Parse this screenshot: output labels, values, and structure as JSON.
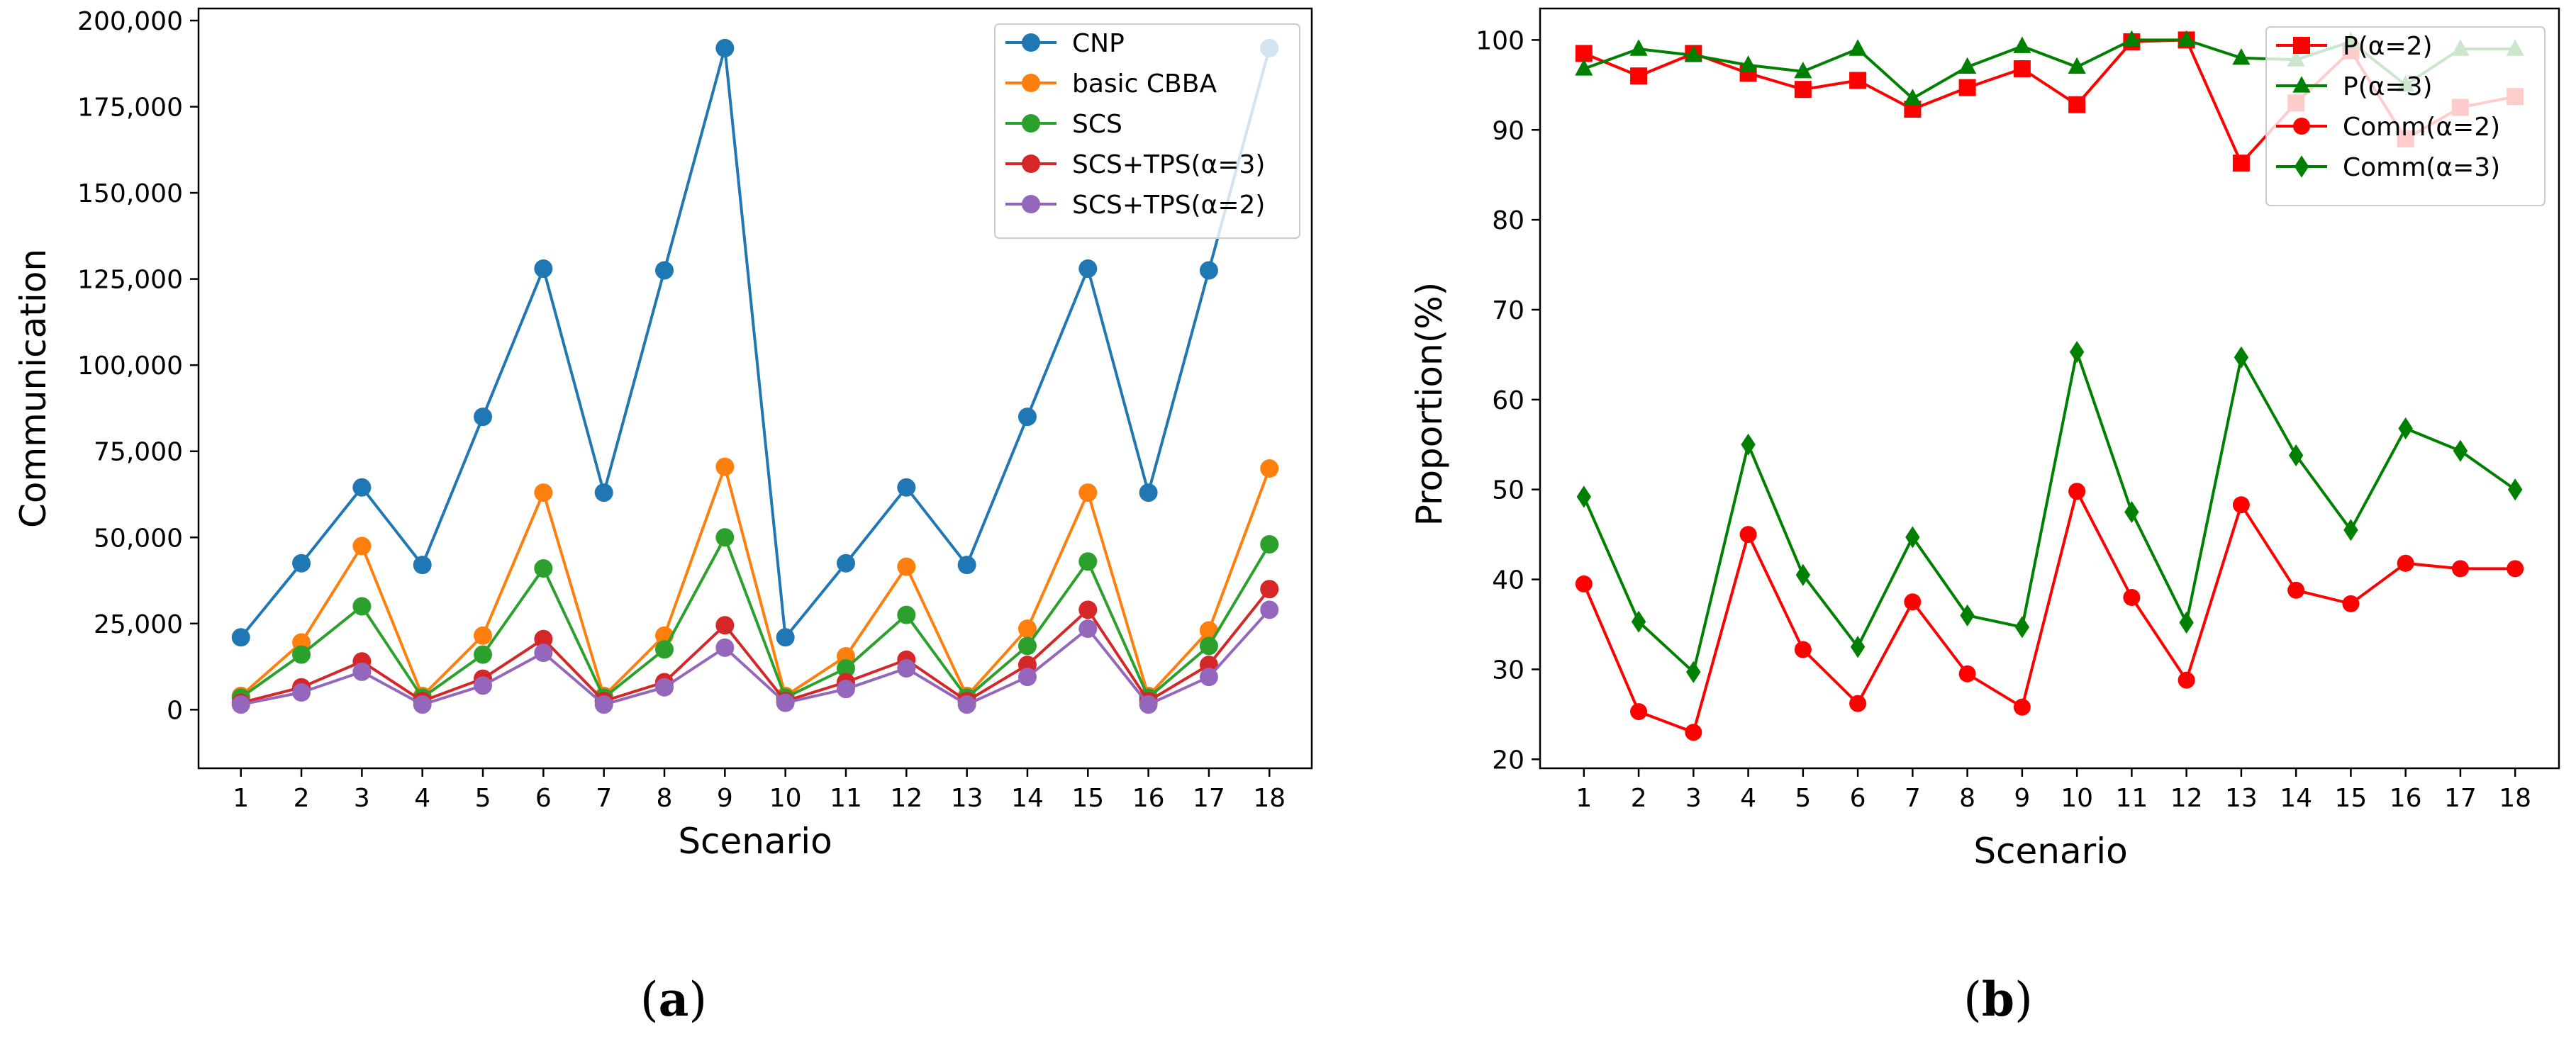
{
  "chart_data": [
    {
      "type": "line",
      "xlabel": "Scenario",
      "ylabel": "Communication",
      "xlim": [
        0.3,
        18.7
      ],
      "ylim": [
        -17000,
        203500
      ],
      "x": [
        1,
        2,
        3,
        4,
        5,
        6,
        7,
        8,
        9,
        10,
        11,
        12,
        13,
        14,
        15,
        16,
        17,
        18
      ],
      "x_tick_labels": [
        "1",
        "2",
        "3",
        "4",
        "5",
        "6",
        "7",
        "8",
        "9",
        "10",
        "11",
        "12",
        "13",
        "14",
        "15",
        "16",
        "17",
        "18"
      ],
      "y_ticks": [
        0,
        25000,
        50000,
        75000,
        100000,
        125000,
        150000,
        175000,
        200000
      ],
      "y_tick_labels": [
        "0",
        "25,000",
        "50,000",
        "75,000",
        "100,000",
        "125,000",
        "150,000",
        "175,000",
        "200,000"
      ],
      "legend_position": "top-right",
      "caption_label": "a",
      "series": [
        {
          "name": "CNP",
          "color": "#1f77b4",
          "marker": "circle",
          "values": [
            21000,
            42500,
            64500,
            42000,
            85000,
            128000,
            63000,
            127500,
            192000,
            21000,
            42500,
            64500,
            42000,
            85000,
            128000,
            63000,
            127500,
            192000
          ]
        },
        {
          "name": "basic CBBA",
          "color": "#ff7f0e",
          "marker": "circle",
          "values": [
            4000,
            19500,
            47500,
            4000,
            21500,
            63000,
            4000,
            21500,
            70500,
            4000,
            15500,
            41500,
            4000,
            23500,
            63000,
            4000,
            23000,
            70000
          ]
        },
        {
          "name": "SCS",
          "color": "#2ca02c",
          "marker": "circle",
          "values": [
            3500,
            16000,
            30000,
            3500,
            16000,
            41000,
            3500,
            17500,
            50000,
            3500,
            12000,
            27500,
            3500,
            18500,
            43000,
            3500,
            18500,
            48000
          ]
        },
        {
          "name": "SCS+TPS(α=3)",
          "color": "#d62728",
          "marker": "circle",
          "values": [
            2000,
            6500,
            14000,
            2500,
            9000,
            20500,
            2500,
            8000,
            24500,
            2500,
            8000,
            14500,
            2500,
            13000,
            29000,
            2500,
            13000,
            35000
          ]
        },
        {
          "name": "SCS+TPS(α=2)",
          "color": "#9467bd",
          "marker": "circle",
          "values": [
            1500,
            5000,
            11000,
            1500,
            7000,
            16500,
            1500,
            6500,
            18000,
            2000,
            6000,
            12000,
            1500,
            9500,
            23500,
            1500,
            9500,
            29000
          ]
        }
      ]
    },
    {
      "type": "line",
      "xlabel": "Scenario",
      "ylabel": "Proportion(%)",
      "xlim": [
        0.2,
        18.8
      ],
      "ylim": [
        19,
        103.5
      ],
      "x": [
        1,
        2,
        3,
        4,
        5,
        6,
        7,
        8,
        9,
        10,
        11,
        12,
        13,
        14,
        15,
        16,
        17,
        18
      ],
      "x_tick_labels": [
        "1",
        "2",
        "3",
        "4",
        "5",
        "6",
        "7",
        "8",
        "9",
        "10",
        "11",
        "12",
        "13",
        "14",
        "15",
        "16",
        "17",
        "18"
      ],
      "y_ticks": [
        20,
        30,
        40,
        50,
        60,
        70,
        80,
        90,
        100
      ],
      "y_tick_labels": [
        "20",
        "30",
        "40",
        "50",
        "60",
        "70",
        "80",
        "90",
        "100"
      ],
      "legend_position": "top-right",
      "caption_label": "b",
      "series": [
        {
          "name": "P(α=2)",
          "color": "#ff0000",
          "marker": "square",
          "values": [
            98.5,
            96.0,
            98.5,
            96.3,
            94.5,
            95.5,
            92.3,
            94.7,
            96.8,
            92.8,
            99.8,
            100.0,
            86.3,
            93.0,
            98.8,
            89.0,
            92.5,
            93.7
          ]
        },
        {
          "name": "P(α=3)",
          "color": "#008000",
          "marker": "triangle",
          "values": [
            96.8,
            99.0,
            98.3,
            97.2,
            96.5,
            99.0,
            93.5,
            97.0,
            99.3,
            97.0,
            100.0,
            100.0,
            98.0,
            97.8,
            99.8,
            95.0,
            99.0,
            99.0
          ]
        },
        {
          "name": "Comm(α=2)",
          "color": "#ff0000",
          "marker": "circle",
          "values": [
            39.5,
            25.3,
            23.0,
            45.0,
            32.2,
            26.2,
            37.5,
            29.5,
            25.8,
            49.8,
            38.0,
            28.8,
            48.3,
            38.8,
            37.3,
            41.8,
            41.2,
            41.2
          ]
        },
        {
          "name": "Comm(α=3)",
          "color": "#008000",
          "marker": "diamond",
          "values": [
            49.2,
            35.3,
            29.7,
            55.0,
            40.5,
            32.5,
            44.7,
            36.0,
            34.7,
            65.3,
            47.5,
            35.2,
            64.7,
            53.8,
            45.5,
            56.8,
            54.3,
            50.0
          ]
        }
      ]
    }
  ]
}
